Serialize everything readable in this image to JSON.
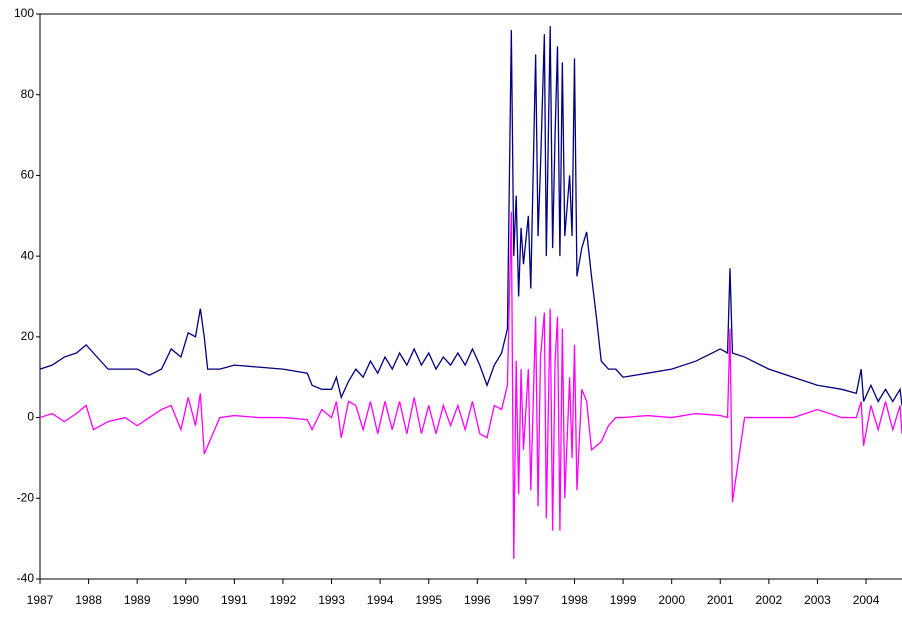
{
  "chart_data": {
    "type": "line",
    "x": [
      1987.0,
      1987.25,
      1987.5,
      1987.75,
      1987.95,
      1988.1,
      1988.4,
      1988.75,
      1989.0,
      1989.25,
      1989.5,
      1989.7,
      1989.9,
      1990.05,
      1990.2,
      1990.3,
      1990.38,
      1990.45,
      1990.7,
      1991.0,
      1991.5,
      1992.0,
      1992.5,
      1992.6,
      1992.8,
      1993.0,
      1993.1,
      1993.2,
      1993.35,
      1993.5,
      1993.65,
      1993.8,
      1993.95,
      1994.1,
      1994.25,
      1994.4,
      1994.55,
      1994.7,
      1994.85,
      1995.0,
      1995.15,
      1995.3,
      1995.45,
      1995.6,
      1995.75,
      1995.9,
      1996.05,
      1996.2,
      1996.35,
      1996.5,
      1996.62,
      1996.7,
      1996.75,
      1996.8,
      1996.85,
      1996.9,
      1996.95,
      1997.05,
      1997.1,
      1997.2,
      1997.25,
      1997.3,
      1997.38,
      1997.42,
      1997.5,
      1997.55,
      1997.6,
      1997.65,
      1997.7,
      1997.75,
      1997.8,
      1997.9,
      1997.95,
      1998.0,
      1998.05,
      1998.15,
      1998.25,
      1998.35,
      1998.45,
      1998.55,
      1998.7,
      1998.85,
      1999.0,
      1999.5,
      2000.0,
      2000.5,
      2001.0,
      2001.15,
      2001.2,
      2001.25,
      2001.5,
      2002.0,
      2002.5,
      2003.0,
      2003.5,
      2003.8,
      2003.9,
      2003.95,
      2004.1,
      2004.25,
      2004.4,
      2004.55,
      2004.7,
      2004.74
    ],
    "series": [
      {
        "color": "#000080",
        "values": [
          12,
          13,
          15,
          16,
          18,
          16,
          12,
          12,
          12,
          10.5,
          12,
          17,
          15,
          21,
          20,
          27,
          20,
          12,
          12,
          13,
          12.5,
          12,
          11,
          8,
          7,
          7,
          10,
          5,
          9,
          12,
          10,
          14,
          11,
          15,
          12,
          16,
          13,
          17,
          13,
          16,
          12,
          15,
          13,
          16,
          13,
          17,
          13,
          8,
          13,
          16,
          22,
          96,
          40,
          55,
          30,
          47,
          38,
          50,
          32,
          90,
          45,
          62,
          95,
          40,
          97,
          42,
          70,
          92,
          40,
          88,
          45,
          60,
          45,
          89,
          35,
          42,
          46,
          35,
          25,
          14,
          12,
          12,
          10,
          11,
          12,
          14,
          17,
          16,
          37,
          16,
          15,
          12,
          10,
          8,
          7,
          6,
          12,
          4,
          8,
          4,
          7,
          4,
          7,
          3
        ]
      },
      {
        "color": "#ff00ff",
        "values": [
          0,
          1,
          -1,
          1,
          3,
          -3,
          -1,
          0,
          -2,
          0,
          2,
          3,
          -3,
          5,
          -2,
          6,
          -9,
          -7,
          0,
          0.5,
          0,
          0,
          -0.5,
          -3,
          2,
          0,
          4,
          -5,
          4,
          3,
          -3,
          4,
          -4,
          4,
          -3,
          4,
          -4,
          5,
          -4,
          3,
          -4,
          3,
          -2,
          3,
          -3,
          4,
          -4,
          -5,
          3,
          2,
          8,
          51,
          -35,
          14,
          -19,
          12,
          -8,
          12,
          -18,
          25,
          -22,
          15,
          26,
          -25,
          27,
          -28,
          14,
          25,
          -28,
          22,
          -20,
          10,
          -10,
          18,
          -18,
          7,
          4,
          -8,
          -7,
          -6,
          -2,
          0,
          0,
          0.5,
          0,
          1,
          0.5,
          0,
          22,
          -21,
          0,
          0,
          0,
          2,
          0,
          0,
          4,
          -7,
          3,
          -3,
          4,
          -3,
          3,
          -4
        ]
      }
    ],
    "xlim": [
      1987,
      2004.74
    ],
    "xticks": [
      1987,
      1988,
      1989,
      1990,
      1991,
      1992,
      1993,
      1994,
      1995,
      1996,
      1997,
      1998,
      1999,
      2000,
      2001,
      2002,
      2003,
      2004
    ],
    "ylim": [
      -40,
      100
    ],
    "yticks": [
      -40,
      -20,
      0,
      20,
      40,
      60,
      80,
      100
    ]
  }
}
